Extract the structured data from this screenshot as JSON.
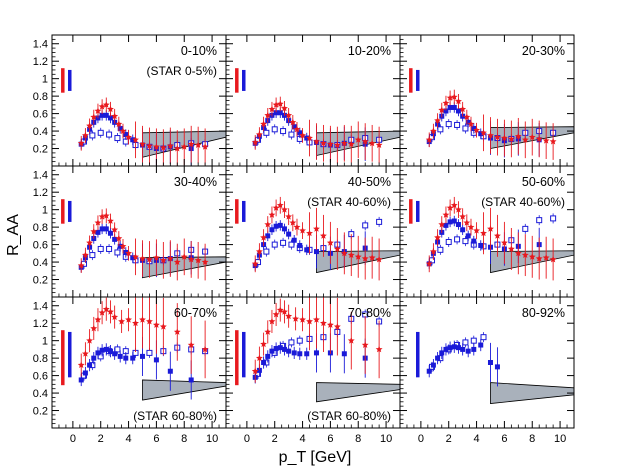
{
  "chart_data": {
    "type": "scatter",
    "grid": "3x3 panels",
    "xlabel": "p_T [GeV]",
    "ylabel": "R_AA",
    "xlim": [
      -1.5,
      11
    ],
    "ylim": [
      0,
      1.5
    ],
    "xticks": [
      0,
      2,
      4,
      6,
      8,
      10
    ],
    "yticks": [
      0.2,
      0.4,
      0.6,
      0.8,
      1,
      1.2,
      1.4
    ],
    "series_styles": {
      "red_star": "#e8191e",
      "blue_filled": "#1a1ad8",
      "blue_open": "#1a1ad8",
      "band": "#a9b1bb"
    },
    "panels": [
      {
        "label": "0-10%",
        "note": "(STAR 0-5%)",
        "red_x": [
          0.6,
          0.9,
          1.2,
          1.5,
          1.8,
          2.1,
          2.4,
          2.7,
          3.0,
          3.3,
          3.6,
          4.0,
          4.5,
          5.0,
          5.5,
          6.0,
          6.5,
          7.0,
          7.5,
          8.0,
          8.5,
          9.0,
          9.5
        ],
        "red_y": [
          0.26,
          0.35,
          0.46,
          0.56,
          0.63,
          0.68,
          0.7,
          0.65,
          0.57,
          0.48,
          0.4,
          0.33,
          0.3,
          0.25,
          0.23,
          0.22,
          0.21,
          0.23,
          0.2,
          0.22,
          0.25,
          0.24,
          0.22
        ],
        "blue_x": [
          0.6,
          0.9,
          1.2,
          1.5,
          1.8,
          2.1,
          2.4,
          2.7,
          3.0,
          3.4,
          3.8,
          4.3,
          5.0,
          6.0,
          7.0,
          8.5
        ],
        "blue_y": [
          0.25,
          0.32,
          0.42,
          0.5,
          0.55,
          0.58,
          0.58,
          0.55,
          0.5,
          0.43,
          0.36,
          0.3,
          0.24,
          0.2,
          0.22,
          0.2
        ],
        "open_x": [
          0.8,
          1.4,
          2.0,
          2.6,
          3.2,
          3.8,
          4.5,
          5.5,
          6.5,
          7.5,
          8.5,
          9.5
        ],
        "open_y": [
          0.28,
          0.35,
          0.38,
          0.36,
          0.32,
          0.28,
          0.24,
          0.22,
          0.2,
          0.24,
          0.26,
          0.25
        ],
        "band_y0": [
          0.1,
          0.33
        ],
        "band_y1": [
          0.38,
          0.4
        ],
        "red_err_h": 0.14,
        "blue_err_h": 0.12
      },
      {
        "label": "10-20%",
        "note": "",
        "red_x": [
          0.6,
          0.9,
          1.2,
          1.5,
          1.8,
          2.1,
          2.4,
          2.7,
          3.0,
          3.3,
          3.6,
          4.0,
          4.5,
          5.0,
          5.5,
          6.0,
          6.5,
          7.0,
          7.5,
          8.0,
          8.5,
          9.0,
          9.5
        ],
        "red_y": [
          0.27,
          0.36,
          0.48,
          0.58,
          0.65,
          0.7,
          0.71,
          0.66,
          0.58,
          0.5,
          0.42,
          0.35,
          0.32,
          0.28,
          0.26,
          0.25,
          0.24,
          0.26,
          0.25,
          0.3,
          0.28,
          0.26,
          0.24
        ],
        "blue_x": [
          0.6,
          0.9,
          1.2,
          1.5,
          1.8,
          2.1,
          2.4,
          2.7,
          3.0,
          3.4,
          3.8,
          4.3,
          5.0,
          6.0,
          7.0,
          8.5
        ],
        "blue_y": [
          0.26,
          0.34,
          0.44,
          0.52,
          0.58,
          0.61,
          0.61,
          0.58,
          0.52,
          0.45,
          0.38,
          0.32,
          0.27,
          0.24,
          0.26,
          0.25
        ],
        "open_x": [
          0.8,
          1.4,
          2.0,
          2.6,
          3.2,
          3.8,
          4.5,
          5.5,
          6.5,
          7.5,
          8.5,
          9.5
        ],
        "open_y": [
          0.3,
          0.38,
          0.42,
          0.4,
          0.36,
          0.31,
          0.27,
          0.25,
          0.24,
          0.3,
          0.32,
          0.3
        ],
        "band_y0": [
          0.12,
          0.33
        ],
        "band_y1": [
          0.38,
          0.4
        ],
        "red_err_h": 0.14,
        "blue_err_h": 0.12
      },
      {
        "label": "20-30%",
        "note": "",
        "red_x": [
          0.6,
          0.9,
          1.2,
          1.5,
          1.8,
          2.1,
          2.4,
          2.7,
          3.0,
          3.3,
          3.6,
          4.0,
          4.5,
          5.0,
          5.5,
          6.0,
          6.5,
          7.0,
          7.5,
          8.0,
          8.5,
          9.0,
          9.5
        ],
        "red_y": [
          0.3,
          0.4,
          0.52,
          0.64,
          0.72,
          0.78,
          0.79,
          0.74,
          0.65,
          0.56,
          0.48,
          0.41,
          0.38,
          0.35,
          0.33,
          0.32,
          0.31,
          0.34,
          0.3,
          0.33,
          0.31,
          0.29,
          0.28
        ],
        "blue_x": [
          0.6,
          0.9,
          1.2,
          1.5,
          1.8,
          2.1,
          2.4,
          2.7,
          3.0,
          3.4,
          3.8,
          4.3,
          5.0,
          6.0,
          7.0,
          8.5
        ],
        "blue_y": [
          0.28,
          0.37,
          0.48,
          0.57,
          0.63,
          0.67,
          0.67,
          0.63,
          0.57,
          0.5,
          0.43,
          0.37,
          0.32,
          0.29,
          0.31,
          0.3
        ],
        "open_x": [
          0.8,
          1.4,
          2.0,
          2.6,
          3.2,
          3.8,
          4.5,
          5.5,
          6.5,
          7.5,
          8.5,
          9.5
        ],
        "open_y": [
          0.33,
          0.42,
          0.48,
          0.47,
          0.43,
          0.38,
          0.34,
          0.32,
          0.31,
          0.38,
          0.4,
          0.38
        ],
        "band_y0": [
          0.2,
          0.38
        ],
        "band_y1": [
          0.44,
          0.45
        ],
        "red_err_h": 0.14,
        "blue_err_h": 0.12
      },
      {
        "label": "30-40%",
        "note": "",
        "red_x": [
          0.6,
          0.9,
          1.2,
          1.5,
          1.8,
          2.1,
          2.4,
          2.7,
          3.0,
          3.3,
          3.6,
          4.0,
          4.5,
          5.0,
          5.5,
          6.0,
          6.5,
          7.0,
          7.5,
          8.0,
          8.5,
          9.0,
          9.5
        ],
        "red_y": [
          0.36,
          0.48,
          0.62,
          0.75,
          0.85,
          0.92,
          0.93,
          0.87,
          0.77,
          0.67,
          0.58,
          0.5,
          0.46,
          0.44,
          0.43,
          0.45,
          0.42,
          0.44,
          0.4,
          0.46,
          0.43,
          0.42,
          0.4
        ],
        "blue_x": [
          0.6,
          0.9,
          1.2,
          1.5,
          1.8,
          2.1,
          2.4,
          2.7,
          3.0,
          3.4,
          3.8,
          4.3,
          5.0,
          6.0,
          7.0,
          8.5
        ],
        "blue_y": [
          0.34,
          0.45,
          0.57,
          0.67,
          0.74,
          0.78,
          0.78,
          0.73,
          0.66,
          0.58,
          0.51,
          0.45,
          0.42,
          0.42,
          0.44,
          0.45
        ],
        "open_x": [
          0.8,
          1.4,
          2.0,
          2.6,
          3.2,
          3.8,
          4.5,
          5.5,
          6.5,
          7.5,
          8.5,
          9.5
        ],
        "open_y": [
          0.38,
          0.48,
          0.55,
          0.55,
          0.51,
          0.46,
          0.42,
          0.41,
          0.42,
          0.5,
          0.54,
          0.52
        ],
        "band_y0": [
          0.22,
          0.4
        ],
        "band_y1": [
          0.45,
          0.46
        ],
        "red_err_h": 0.14,
        "blue_err_h": 0.12
      },
      {
        "label": "40-50%",
        "note": "(STAR 40-60%)",
        "red_x": [
          0.6,
          0.9,
          1.2,
          1.5,
          1.8,
          2.1,
          2.4,
          2.7,
          3.0,
          3.3,
          3.6,
          4.0,
          4.5,
          5.0,
          5.5,
          6.0,
          6.5,
          7.0,
          7.5,
          8.0,
          8.5,
          9.0,
          9.5
        ],
        "red_y": [
          0.38,
          0.52,
          0.68,
          0.83,
          0.94,
          1.02,
          1.05,
          1.0,
          0.92,
          0.85,
          0.8,
          0.76,
          0.73,
          0.78,
          0.7,
          0.62,
          0.55,
          0.5,
          0.48,
          0.46,
          0.44,
          0.45,
          0.43
        ],
        "blue_x": [
          0.6,
          0.9,
          1.2,
          1.5,
          1.8,
          2.1,
          2.4,
          2.7,
          3.0,
          3.4,
          3.8,
          4.3,
          5.0,
          6.0,
          7.0,
          8.5
        ],
        "blue_y": [
          0.36,
          0.48,
          0.6,
          0.7,
          0.77,
          0.81,
          0.82,
          0.78,
          0.72,
          0.65,
          0.59,
          0.54,
          0.52,
          0.5,
          0.52,
          0.56
        ],
        "open_x": [
          0.8,
          1.4,
          2.0,
          2.6,
          3.2,
          3.8,
          4.5,
          5.5,
          6.5,
          7.5,
          8.5,
          9.5
        ],
        "open_y": [
          0.4,
          0.52,
          0.6,
          0.62,
          0.6,
          0.56,
          0.54,
          0.56,
          0.6,
          0.72,
          0.82,
          0.86
        ],
        "band_y0": [
          0.28,
          0.48
        ],
        "band_y1": [
          0.52,
          0.53
        ],
        "red_err_h": 0.16,
        "blue_err_h": 0.12
      },
      {
        "label": "50-60%",
        "note": "(STAR 40-60%)",
        "red_x": [
          0.6,
          0.9,
          1.2,
          1.5,
          1.8,
          2.1,
          2.4,
          2.7,
          3.0,
          3.3,
          3.6,
          4.0,
          4.5,
          5.0,
          5.5,
          6.0,
          6.5,
          7.0,
          7.5,
          8.0,
          8.5,
          9.0,
          9.5
        ],
        "red_y": [
          0.38,
          0.52,
          0.68,
          0.83,
          0.94,
          1.02,
          1.05,
          1.0,
          0.92,
          0.85,
          0.8,
          0.76,
          0.73,
          0.78,
          0.7,
          0.62,
          0.55,
          0.5,
          0.48,
          0.46,
          0.44,
          0.45,
          0.43
        ],
        "blue_x": [
          0.6,
          0.9,
          1.2,
          1.5,
          1.8,
          2.1,
          2.4,
          2.7,
          3.0,
          3.4,
          3.8,
          4.3,
          5.0,
          6.0,
          7.0,
          8.5
        ],
        "blue_y": [
          0.38,
          0.5,
          0.63,
          0.74,
          0.82,
          0.86,
          0.87,
          0.83,
          0.77,
          0.7,
          0.64,
          0.59,
          0.57,
          0.55,
          0.58,
          0.6
        ],
        "open_x": [
          0.8,
          1.4,
          2.0,
          2.6,
          3.2,
          3.8,
          4.5,
          5.5,
          6.5,
          7.5,
          8.5,
          9.5
        ],
        "open_y": [
          0.42,
          0.54,
          0.63,
          0.66,
          0.64,
          0.6,
          0.58,
          0.6,
          0.65,
          0.78,
          0.88,
          0.9
        ],
        "band_y0": [
          0.28,
          0.48
        ],
        "band_y1": [
          0.52,
          0.53
        ],
        "red_err_h": 0.16,
        "blue_err_h": 0.12
      },
      {
        "label": "60-70%",
        "note": "(STAR 60-80%)",
        "red_x": [
          0.6,
          0.9,
          1.2,
          1.5,
          1.8,
          2.1,
          2.4,
          2.7,
          3.0,
          3.5,
          4.0,
          4.5,
          5.0,
          5.5,
          6.0,
          6.5,
          7.5,
          8.5,
          9.5
        ],
        "red_y": [
          0.72,
          0.85,
          1.0,
          1.14,
          1.24,
          1.32,
          1.36,
          1.33,
          1.27,
          1.22,
          1.24,
          1.2,
          1.24,
          1.22,
          1.18,
          1.16,
          1.1,
          0.95,
          0.9
        ],
        "blue_x": [
          0.6,
          0.9,
          1.2,
          1.5,
          1.8,
          2.1,
          2.4,
          2.7,
          3.0,
          3.4,
          3.8,
          4.3,
          5.0,
          6.0,
          7.0,
          8.5
        ],
        "blue_y": [
          0.55,
          0.63,
          0.72,
          0.8,
          0.86,
          0.89,
          0.9,
          0.88,
          0.85,
          0.82,
          0.8,
          0.8,
          0.82,
          0.78,
          0.65,
          0.55
        ],
        "open_x": [
          0.8,
          1.4,
          2.0,
          2.6,
          3.2,
          3.8,
          4.5,
          5.5,
          6.5,
          7.5,
          8.5,
          9.5
        ],
        "open_y": [
          0.6,
          0.72,
          0.82,
          0.88,
          0.9,
          0.88,
          0.86,
          0.86,
          0.88,
          0.92,
          0.9,
          0.88
        ],
        "band_y0": [
          0.32,
          0.48
        ],
        "band_y1": [
          0.55,
          0.52
        ],
        "red_err_h": 0.22,
        "blue_err_h": 0.14
      },
      {
        "label": "70-80%",
        "note": "(STAR 60-80%)",
        "red_x": [
          0.6,
          0.9,
          1.2,
          1.5,
          1.8,
          2.1,
          2.4,
          2.7,
          3.0,
          3.5,
          4.0,
          4.5,
          5.0,
          5.5,
          6.0,
          6.5,
          7.5,
          8.5,
          9.5
        ],
        "red_y": [
          0.65,
          0.8,
          0.96,
          1.1,
          1.22,
          1.3,
          1.35,
          1.33,
          1.28,
          1.25,
          1.24,
          1.22,
          1.24,
          1.2,
          1.18,
          1.16,
          1.0,
          0.95,
          0.9
        ],
        "blue_x": [
          0.6,
          0.9,
          1.2,
          1.5,
          1.8,
          2.1,
          2.4,
          2.7,
          3.0,
          3.4,
          3.8,
          4.3,
          5.0,
          6.0,
          7.0,
          8.5
        ],
        "blue_y": [
          0.58,
          0.66,
          0.75,
          0.82,
          0.88,
          0.91,
          0.92,
          0.9,
          0.88,
          0.86,
          0.85,
          0.85,
          0.86,
          0.86,
          0.85,
          0.8
        ],
        "open_x": [
          0.8,
          1.4,
          2.0,
          2.6,
          3.2,
          3.8,
          4.5,
          5.5,
          6.5,
          7.5,
          8.5,
          9.5
        ],
        "open_y": [
          0.62,
          0.75,
          0.86,
          0.94,
          0.98,
          1.0,
          1.02,
          1.04,
          1.1,
          1.25,
          1.3,
          1.22
        ],
        "band_y0": [
          0.3,
          0.44
        ],
        "band_y1": [
          0.52,
          0.5
        ],
        "red_err_h": 0.22,
        "blue_err_h": 0.14
      },
      {
        "label": "80-92%",
        "note": "",
        "red_x": [],
        "red_y": [],
        "blue_x": [
          0.6,
          0.9,
          1.2,
          1.5,
          1.8,
          2.1,
          2.4,
          2.7,
          3.0,
          3.4,
          3.8,
          4.3,
          5.0,
          5.5
        ],
        "blue_y": [
          0.65,
          0.72,
          0.8,
          0.86,
          0.9,
          0.92,
          0.93,
          0.92,
          0.9,
          0.88,
          0.9,
          0.95,
          0.75,
          0.7
        ],
        "open_x": [
          0.8,
          1.4,
          2.0,
          2.6,
          3.2,
          3.8,
          4.5
        ],
        "open_y": [
          0.7,
          0.8,
          0.9,
          0.95,
          0.98,
          1.0,
          1.04
        ],
        "band_y0": [
          0.28,
          0.38
        ],
        "band_y1": [
          0.52,
          0.46
        ],
        "red_err_h": 0.0,
        "blue_err_h": 0.14
      }
    ]
  }
}
